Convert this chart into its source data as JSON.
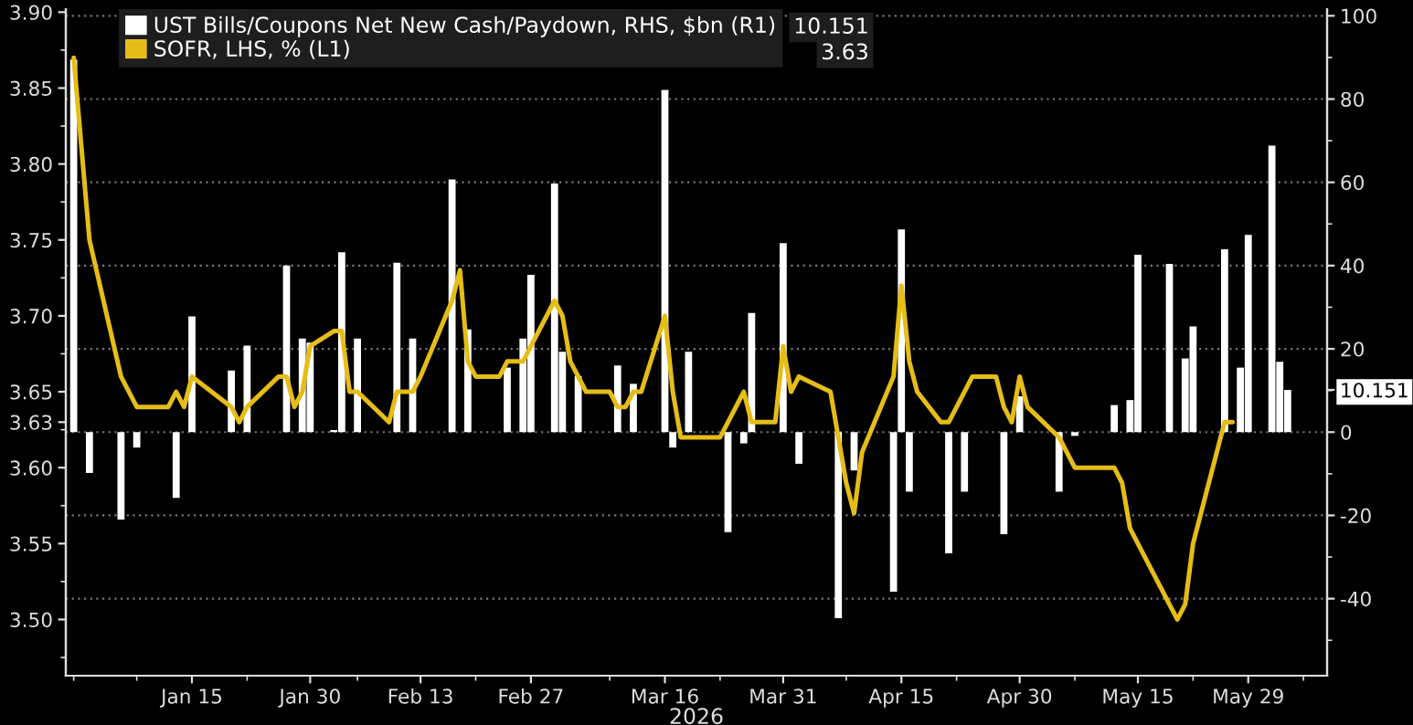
{
  "chart_data": {
    "type": "bar",
    "xlabel": "2026",
    "xlim": [
      "2025-12-30",
      "2026-06-08"
    ],
    "xticks": [
      {
        "value": "2025-12-31",
        "label": null
      },
      {
        "value": "2026-01-08",
        "label": null
      },
      {
        "value": "2026-01-15",
        "label": "Jan 15"
      },
      {
        "value": "2026-01-22",
        "label": null
      },
      {
        "value": "2026-01-30",
        "label": "Jan 30"
      },
      {
        "value": "2026-02-05",
        "label": null
      },
      {
        "value": "2026-02-13",
        "label": "Feb 13"
      },
      {
        "value": "2026-02-20",
        "label": null
      },
      {
        "value": "2026-02-27",
        "label": "Feb 27"
      },
      {
        "value": "2026-03-09",
        "label": null
      },
      {
        "value": "2026-03-16",
        "label": "Mar 16"
      },
      {
        "value": "2026-03-23",
        "label": null
      },
      {
        "value": "2026-03-31",
        "label": "Mar 31"
      },
      {
        "value": "2026-04-08",
        "label": null
      },
      {
        "value": "2026-04-15",
        "label": "Apr 15"
      },
      {
        "value": "2026-04-22",
        "label": null
      },
      {
        "value": "2026-04-30",
        "label": "Apr 30"
      },
      {
        "value": "2026-05-07",
        "label": null
      },
      {
        "value": "2026-05-15",
        "label": "May 15"
      },
      {
        "value": "2026-05-22",
        "label": null
      },
      {
        "value": "2026-05-29",
        "label": "May 29"
      },
      {
        "value": "2026-06-05",
        "label": null
      }
    ],
    "ylim": [
      3.463,
      3.902
    ],
    "yticks": [
      {
        "value": 3.475,
        "label": null
      },
      {
        "value": 3.5,
        "label": "3.50"
      },
      {
        "value": 3.525,
        "label": null
      },
      {
        "value": 3.55,
        "label": "3.55"
      },
      {
        "value": 3.575,
        "label": null
      },
      {
        "value": 3.6,
        "label": "3.60"
      },
      {
        "value": 3.625,
        "label": null
      },
      {
        "value": 3.63,
        "label": "3.63"
      },
      {
        "value": 3.65,
        "label": "3.65"
      },
      {
        "value": 3.675,
        "label": null
      },
      {
        "value": 3.7,
        "label": "3.70"
      },
      {
        "value": 3.725,
        "label": null
      },
      {
        "value": 3.75,
        "label": "3.75"
      },
      {
        "value": 3.775,
        "label": null
      },
      {
        "value": 3.8,
        "label": "3.80"
      },
      {
        "value": 3.825,
        "label": null
      },
      {
        "value": 3.85,
        "label": "3.85"
      },
      {
        "value": 3.875,
        "label": null
      },
      {
        "value": 3.9,
        "label": "3.90"
      }
    ],
    "y2lim": [
      -58.5,
      101.6
    ],
    "y2ticks": [
      {
        "value": -50,
        "label": null
      },
      -40,
      {
        "value": -30,
        "label": null
      },
      -20,
      {
        "value": -10,
        "label": null
      },
      0,
      {
        "value": 10,
        "label": null
      },
      {
        "value": 10.151,
        "label": "10.151"
      },
      20,
      {
        "value": 30,
        "label": null
      },
      40,
      {
        "value": 50,
        "label": null
      },
      60,
      {
        "value": 70,
        "label": null
      },
      80,
      {
        "value": 90,
        "label": null
      },
      100
    ],
    "grid": true,
    "legend": "top left",
    "annotations": [
      "10.151",
      "3.63"
    ],
    "series": [
      {
        "name": "UST Bills/Coupons Net New Cash/Paydown, RHS, $bn (R1)",
        "axis": "y2",
        "color": "#ffffff",
        "x": [
          "2025-12-31",
          "2026-01-02",
          "2026-01-06",
          "2026-01-08",
          "2026-01-13",
          "2026-01-15",
          "2026-01-20",
          "2026-01-22",
          "2026-01-27",
          "2026-01-29",
          "2026-01-30",
          "2026-02-02",
          "2026-02-03",
          "2026-02-05",
          "2026-02-10",
          "2026-02-12",
          "2026-02-17",
          "2026-02-19",
          "2026-02-24",
          "2026-02-26",
          "2026-02-27",
          "2026-03-02",
          "2026-03-03",
          "2026-03-05",
          "2026-03-10",
          "2026-03-12",
          "2026-03-16",
          "2026-03-17",
          "2026-03-19",
          "2026-03-24",
          "2026-03-26",
          "2026-03-27",
          "2026-03-31",
          "2026-04-02",
          "2026-04-07",
          "2026-04-09",
          "2026-04-14",
          "2026-04-15",
          "2026-04-16",
          "2026-04-21",
          "2026-04-23",
          "2026-04-28",
          "2026-04-30",
          "2026-05-05",
          "2026-05-07",
          "2026-05-12",
          "2026-05-14",
          "2026-05-15",
          "2026-05-19",
          "2026-05-21",
          "2026-05-22",
          "2026-05-26",
          "2026-05-28",
          "2026-05-29",
          "2026-06-01",
          "2026-06-02",
          "2026-06-03"
        ],
        "values": [
          89.5,
          -9.8,
          -21,
          -3.7,
          -15.8,
          27.8,
          14.8,
          20.8,
          40,
          22.5,
          21.5,
          0.5,
          43.2,
          22.5,
          40.7,
          22.5,
          60.7,
          24.7,
          15.5,
          22.5,
          37.8,
          59.7,
          19.3,
          13.5,
          16,
          11.6,
          82.2,
          -3.7,
          19.3,
          -24,
          -2.7,
          28.6,
          45.4,
          -7.6,
          -44.7,
          -9.2,
          -38.3,
          48.7,
          -14.3,
          -29.1,
          -14.3,
          -24.5,
          8.6,
          -14.3,
          -0.9,
          6.5,
          7.7,
          42.6,
          40.4,
          17.7,
          25.4,
          43.9,
          15.5,
          47.4,
          68.8,
          16.9,
          10.151
        ]
      },
      {
        "name": "SOFR, LHS, % (L1)",
        "type": "line",
        "color": "#e6bd17",
        "x": [
          "2025-12-31",
          "2026-01-02",
          "2026-01-06",
          "2026-01-08",
          "2026-01-12",
          "2026-01-13",
          "2026-01-14",
          "2026-01-15",
          "2026-01-20",
          "2026-01-21",
          "2026-01-22",
          "2026-01-26",
          "2026-01-27",
          "2026-01-28",
          "2026-01-29",
          "2026-01-30",
          "2026-02-02",
          "2026-02-03",
          "2026-02-04",
          "2026-02-05",
          "2026-02-09",
          "2026-02-10",
          "2026-02-12",
          "2026-02-13",
          "2026-02-17",
          "2026-02-18",
          "2026-02-19",
          "2026-02-20",
          "2026-02-23",
          "2026-02-24",
          "2026-02-26",
          "2026-02-27",
          "2026-03-02",
          "2026-03-03",
          "2026-03-04",
          "2026-03-05",
          "2026-03-06",
          "2026-03-09",
          "2026-03-10",
          "2026-03-11",
          "2026-03-12",
          "2026-03-13",
          "2026-03-16",
          "2026-03-17",
          "2026-03-18",
          "2026-03-23",
          "2026-03-24",
          "2026-03-26",
          "2026-03-27",
          "2026-03-30",
          "2026-03-31",
          "2026-04-01",
          "2026-04-02",
          "2026-04-06",
          "2026-04-07",
          "2026-04-08",
          "2026-04-09",
          "2026-04-10",
          "2026-04-14",
          "2026-04-15",
          "2026-04-16",
          "2026-04-17",
          "2026-04-20",
          "2026-04-21",
          "2026-04-23",
          "2026-04-24",
          "2026-04-27",
          "2026-04-28",
          "2026-04-29",
          "2026-04-30",
          "2026-05-01",
          "2026-05-05",
          "2026-05-07",
          "2026-05-12",
          "2026-05-13",
          "2026-05-14",
          "2026-05-15",
          "2026-05-19",
          "2026-05-20",
          "2026-05-21",
          "2026-05-22",
          "2026-05-26",
          "2026-05-27"
        ],
        "values": [
          3.87,
          3.75,
          3.66,
          3.64,
          3.64,
          3.65,
          3.64,
          3.66,
          3.64,
          3.63,
          3.64,
          3.66,
          3.66,
          3.64,
          3.65,
          3.68,
          3.69,
          3.69,
          3.65,
          3.65,
          3.63,
          3.65,
          3.65,
          3.66,
          3.71,
          3.73,
          3.67,
          3.66,
          3.66,
          3.67,
          3.67,
          3.68,
          3.71,
          3.7,
          3.67,
          3.66,
          3.65,
          3.65,
          3.64,
          3.64,
          3.65,
          3.65,
          3.7,
          3.65,
          3.62,
          3.62,
          3.63,
          3.65,
          3.63,
          3.63,
          3.68,
          3.65,
          3.66,
          3.65,
          3.62,
          3.59,
          3.57,
          3.61,
          3.66,
          3.72,
          3.67,
          3.65,
          3.63,
          3.63,
          3.65,
          3.66,
          3.66,
          3.64,
          3.63,
          3.66,
          3.64,
          3.62,
          3.6,
          3.6,
          3.59,
          3.56,
          3.55,
          3.51,
          3.5,
          3.51,
          3.55,
          3.63,
          3.63
        ]
      }
    ]
  }
}
